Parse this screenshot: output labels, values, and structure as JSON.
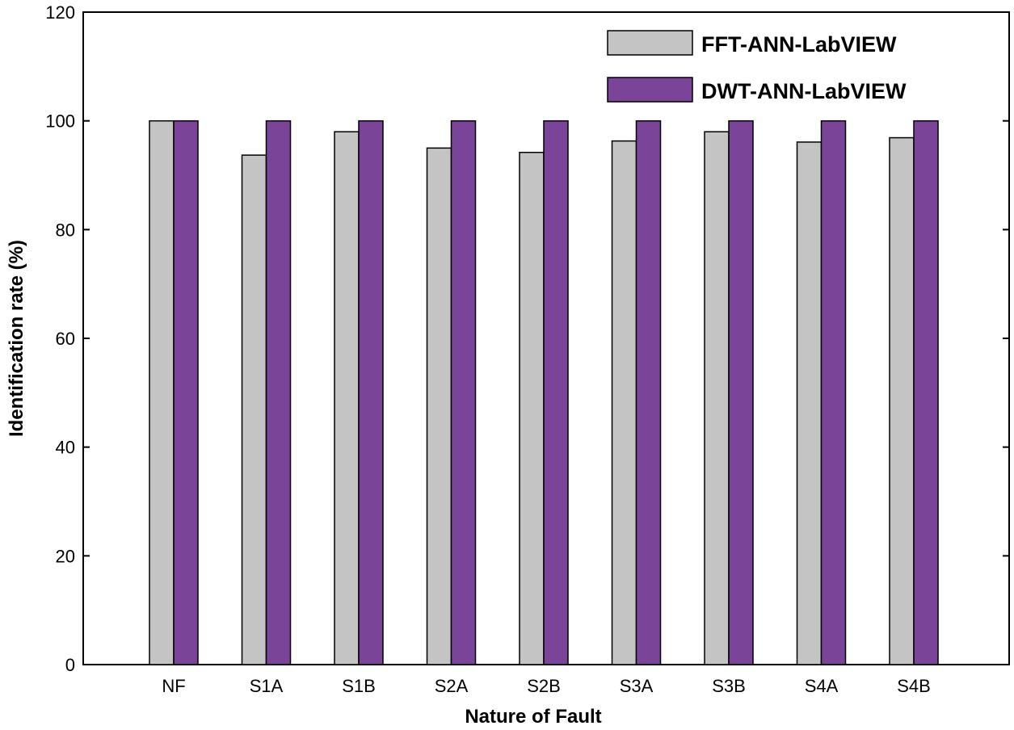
{
  "chart_data": {
    "type": "bar",
    "categories": [
      "NF",
      "S1A",
      "S1B",
      "S2A",
      "S2B",
      "S3A",
      "S3B",
      "S4A",
      "S4B"
    ],
    "series": [
      {
        "name": "FFT-ANN-LabVIEW",
        "color": "#c4c4c4",
        "values": [
          100,
          93.7,
          98,
          95,
          94.2,
          96.3,
          98,
          96.1,
          96.9
        ]
      },
      {
        "name": "DWT-ANN-LabVIEW",
        "color": "#7a4499",
        "values": [
          100,
          100,
          100,
          100,
          100,
          100,
          100,
          100,
          100
        ]
      }
    ],
    "title": "",
    "xlabel": "Nature of Fault",
    "ylabel": "Identification rate (%)",
    "ylim": [
      0,
      120
    ],
    "yticks": [
      0,
      20,
      40,
      60,
      80,
      100,
      120
    ],
    "grid": false,
    "legend_position": "top-right"
  }
}
